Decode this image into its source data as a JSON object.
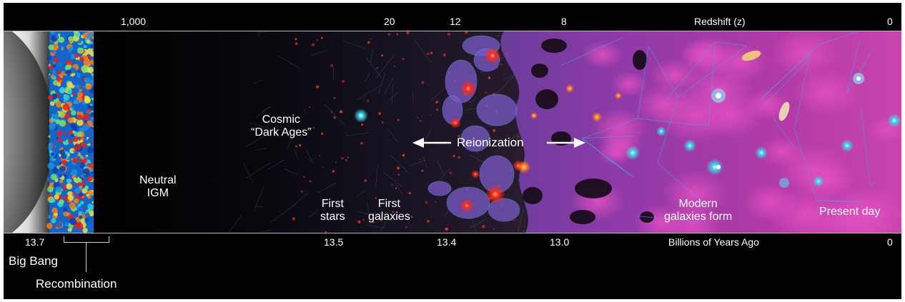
{
  "top_axis": {
    "title": "Redshift (z)",
    "ticks": [
      "1,000",
      "20",
      "12",
      "8",
      "0"
    ]
  },
  "bottom_axis": {
    "title": "Billions of Years Ago",
    "ticks": [
      "13.7",
      "13.5",
      "13.4",
      "13.0",
      "0"
    ]
  },
  "labels": {
    "big_bang": "Big Bang",
    "recombination": "Recombination",
    "neutral_igm": "Neutral\nIGM",
    "dark_ages": "Cosmic\n“Dark Ages”",
    "first_stars": "First\nstars",
    "first_galaxies": "First\ngalaxies",
    "reionization": "Reionization",
    "modern_galaxies": "Modern\ngalaxies form",
    "present_day": "Present day"
  },
  "colors": {
    "background": "#000000",
    "cosmic_web": "#3a8fd8",
    "ionized_magenta": "#c43aa8",
    "neutral_gas": "#000000"
  }
}
